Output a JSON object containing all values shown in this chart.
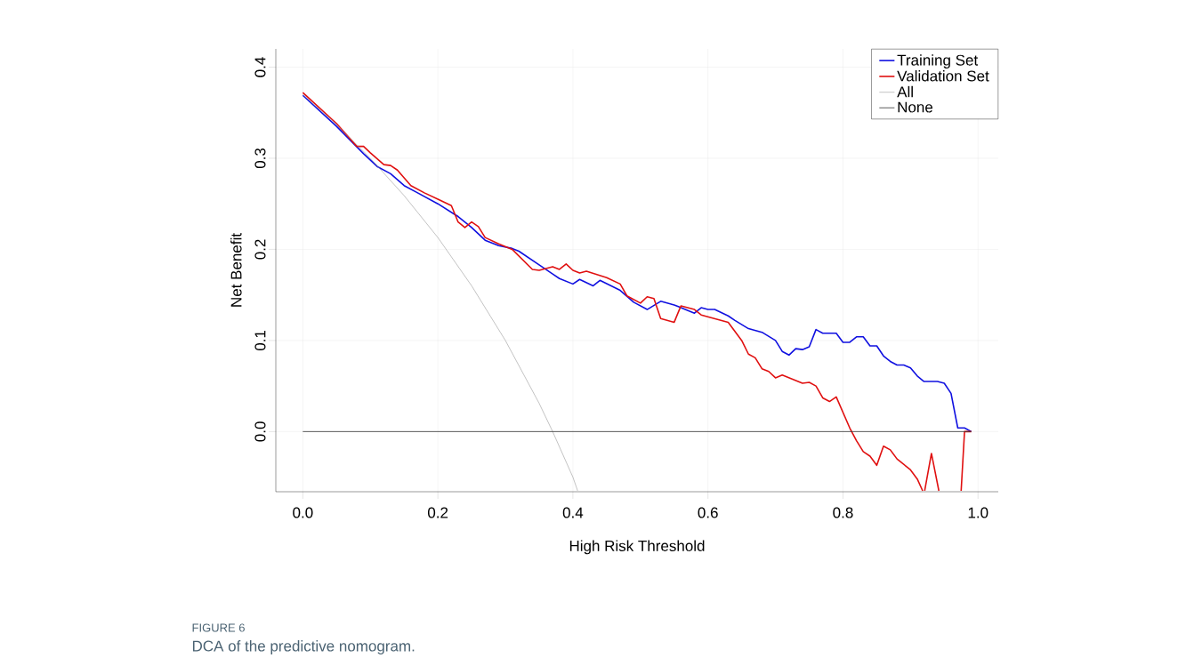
{
  "chart_data": {
    "type": "line",
    "xlabel": "High Risk Threshold",
    "ylabel": "Net Benefit",
    "xlim": [
      -0.04,
      1.03
    ],
    "ylim": [
      -0.066,
      0.42
    ],
    "xticks": [
      {
        "value": 0,
        "label": "0.0"
      },
      0.2,
      0.4,
      0.6,
      0.8,
      {
        "value": 1,
        "label": "1.0"
      }
    ],
    "yticks": [
      {
        "value": 0,
        "label": "0.0"
      },
      0.1,
      0.2,
      0.3,
      0.4
    ],
    "grid": true,
    "legend": "top right",
    "series": [
      {
        "name": "Training Set",
        "color": "#1010e0",
        "x": [
          0,
          0.05,
          0.09,
          0.11,
          0.13,
          0.15,
          0.17,
          0.2,
          0.23,
          0.25,
          0.27,
          0.29,
          0.31,
          0.32,
          0.35,
          0.37,
          0.38,
          0.4,
          0.41,
          0.43,
          0.44,
          0.47,
          0.49,
          0.51,
          0.53,
          0.55,
          0.58,
          0.59,
          0.6,
          0.61,
          0.63,
          0.64,
          0.66,
          0.68,
          0.7,
          0.71,
          0.72,
          0.73,
          0.74,
          0.75,
          0.76,
          0.77,
          0.79,
          0.8,
          0.81,
          0.82,
          0.83,
          0.84,
          0.85,
          0.86,
          0.87,
          0.88,
          0.89,
          0.9,
          0.91,
          0.92,
          0.94,
          0.95,
          0.96,
          0.97,
          0.98,
          0.99
        ],
        "values": [
          0.369,
          0.335,
          0.305,
          0.291,
          0.283,
          0.27,
          0.262,
          0.25,
          0.236,
          0.224,
          0.21,
          0.204,
          0.201,
          0.198,
          0.183,
          0.173,
          0.168,
          0.162,
          0.167,
          0.16,
          0.166,
          0.155,
          0.142,
          0.134,
          0.143,
          0.139,
          0.13,
          0.136,
          0.134,
          0.134,
          0.127,
          0.122,
          0.113,
          0.109,
          0.1,
          0.088,
          0.084,
          0.091,
          0.09,
          0.093,
          0.112,
          0.108,
          0.108,
          0.098,
          0.098,
          0.104,
          0.104,
          0.094,
          0.094,
          0.083,
          0.077,
          0.073,
          0.073,
          0.07,
          0.061,
          0.055,
          0.055,
          0.053,
          0.042,
          0.004,
          0.004,
          0.0
        ]
      },
      {
        "name": "Validation Set",
        "color": "#e01010",
        "x": [
          0,
          0.05,
          0.08,
          0.09,
          0.1,
          0.12,
          0.13,
          0.14,
          0.16,
          0.18,
          0.2,
          0.22,
          0.23,
          0.24,
          0.25,
          0.26,
          0.27,
          0.29,
          0.31,
          0.34,
          0.35,
          0.37,
          0.38,
          0.39,
          0.4,
          0.41,
          0.42,
          0.45,
          0.47,
          0.48,
          0.5,
          0.51,
          0.52,
          0.53,
          0.55,
          0.56,
          0.58,
          0.59,
          0.63,
          0.65,
          0.66,
          0.67,
          0.68,
          0.69,
          0.7,
          0.71,
          0.74,
          0.75,
          0.76,
          0.77,
          0.78,
          0.79,
          0.81,
          0.82,
          0.83,
          0.84,
          0.85,
          0.86,
          0.87,
          0.88,
          0.9,
          0.91,
          0.918,
          0.92,
          0.921,
          0.931,
          0.942,
          0.96,
          0.975,
          0.98,
          0.99
        ],
        "values": [
          0.372,
          0.338,
          0.313,
          0.313,
          0.306,
          0.293,
          0.292,
          0.287,
          0.27,
          0.262,
          0.255,
          0.248,
          0.23,
          0.224,
          0.23,
          0.225,
          0.213,
          0.206,
          0.2,
          0.178,
          0.177,
          0.181,
          0.178,
          0.184,
          0.177,
          0.174,
          0.176,
          0.169,
          0.162,
          0.149,
          0.141,
          0.148,
          0.146,
          0.124,
          0.12,
          0.138,
          0.134,
          0.128,
          0.12,
          0.1,
          0.085,
          0.081,
          0.069,
          0.066,
          0.059,
          0.062,
          0.053,
          0.054,
          0.05,
          0.037,
          0.033,
          0.038,
          0.004,
          -0.01,
          -0.022,
          -0.027,
          -0.037,
          -0.016,
          -0.02,
          -0.03,
          -0.042,
          -0.052,
          -0.065,
          null,
          -0.065,
          -0.024,
          -0.065,
          null,
          -0.065,
          0.0,
          0.0
        ]
      },
      {
        "name": "All",
        "color": "#9a9a9a",
        "x": [
          0,
          0.05,
          0.1,
          0.15,
          0.2,
          0.25,
          0.3,
          0.35,
          0.37,
          0.4,
          0.407
        ],
        "values": [
          0.37,
          0.337,
          0.3,
          0.259,
          0.213,
          0.16,
          0.1,
          0.031,
          0.0,
          -0.05,
          -0.065
        ]
      },
      {
        "name": "None",
        "color": "#333333",
        "x": [
          0,
          0.99
        ],
        "values": [
          0,
          0
        ]
      }
    ],
    "annotations": [
      "FIGURE 6",
      "DCA of the predictive nomogram."
    ]
  }
}
